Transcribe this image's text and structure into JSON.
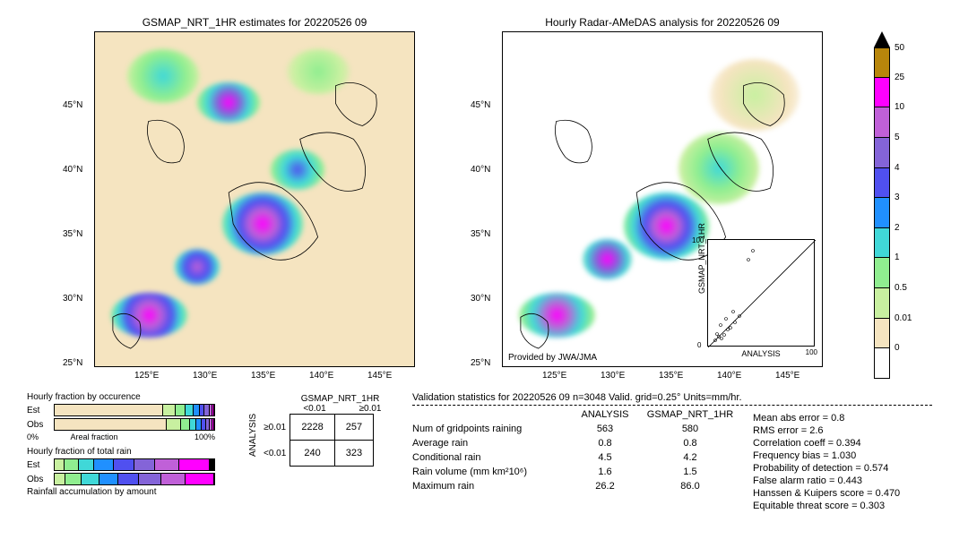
{
  "maps": {
    "left": {
      "title": "GSMAP_NRT_1HR estimates for 20220526 09",
      "x_ticks": [
        "125°E",
        "130°E",
        "135°E",
        "140°E",
        "145°E"
      ],
      "y_ticks": [
        "25°N",
        "30°N",
        "35°N",
        "40°N",
        "45°N"
      ],
      "bg_color": "#f5e4c0"
    },
    "right": {
      "title": "Hourly Radar-AMeDAS analysis for 20220526 09",
      "x_ticks": [
        "125°E",
        "130°E",
        "135°E",
        "140°E",
        "145°E"
      ],
      "y_ticks": [
        "25°N",
        "30°N",
        "35°N",
        "40°N",
        "45°N"
      ],
      "attribution": "Provided by JWA/JMA",
      "bg_color": "#ffffff"
    },
    "xlim": [
      120,
      150
    ],
    "ylim": [
      22,
      48
    ]
  },
  "scatter_inset": {
    "xlabel": "ANALYSIS",
    "ylabel": "GSMAP_NRT_1HR",
    "ticks": [
      "0",
      "20",
      "40",
      "60",
      "80",
      "100"
    ],
    "lim": [
      0,
      100
    ]
  },
  "colorbar": {
    "values": [
      "50",
      "25",
      "10",
      "5",
      "4",
      "3",
      "2",
      "1",
      "0.5",
      "0.01",
      "0"
    ],
    "colors": [
      "#b8860b",
      "#ff00ff",
      "#c060d8",
      "#8464d8",
      "#5050f0",
      "#2090ff",
      "#40d8d8",
      "#90ee90",
      "#c8f0a0",
      "#f5e4c0",
      "#ffffff"
    ],
    "top_arrow_color": "#000000"
  },
  "fraction_bars": {
    "occurrence_title": "Hourly fraction by occurence",
    "occurrence_xlabel": "Areal fraction",
    "occurrence_ticks": [
      "0%",
      "100%"
    ],
    "total_title": "Hourly fraction of total rain",
    "accum_title": "Rainfall accumulation by amount",
    "row_labels": [
      "Est",
      "Obs"
    ],
    "occurrence_est": [
      {
        "w": 0.68,
        "c": "#f5e4c0"
      },
      {
        "w": 0.08,
        "c": "#c8f0a0"
      },
      {
        "w": 0.06,
        "c": "#90ee90"
      },
      {
        "w": 0.05,
        "c": "#40d8d8"
      },
      {
        "w": 0.04,
        "c": "#2090ff"
      },
      {
        "w": 0.03,
        "c": "#5050f0"
      },
      {
        "w": 0.03,
        "c": "#8464d8"
      },
      {
        "w": 0.02,
        "c": "#c060d8"
      },
      {
        "w": 0.01,
        "c": "#ff00ff"
      }
    ],
    "occurrence_obs": [
      {
        "w": 0.7,
        "c": "#f5e4c0"
      },
      {
        "w": 0.09,
        "c": "#c8f0a0"
      },
      {
        "w": 0.06,
        "c": "#90ee90"
      },
      {
        "w": 0.04,
        "c": "#40d8d8"
      },
      {
        "w": 0.03,
        "c": "#2090ff"
      },
      {
        "w": 0.03,
        "c": "#5050f0"
      },
      {
        "w": 0.02,
        "c": "#8464d8"
      },
      {
        "w": 0.02,
        "c": "#c060d8"
      },
      {
        "w": 0.01,
        "c": "#ff00ff"
      }
    ],
    "total_est": [
      {
        "w": 0.06,
        "c": "#c8f0a0"
      },
      {
        "w": 0.09,
        "c": "#90ee90"
      },
      {
        "w": 0.1,
        "c": "#40d8d8"
      },
      {
        "w": 0.12,
        "c": "#2090ff"
      },
      {
        "w": 0.13,
        "c": "#5050f0"
      },
      {
        "w": 0.13,
        "c": "#8464d8"
      },
      {
        "w": 0.15,
        "c": "#c060d8"
      },
      {
        "w": 0.19,
        "c": "#ff00ff"
      },
      {
        "w": 0.03,
        "c": "#000000"
      }
    ],
    "total_obs": [
      {
        "w": 0.07,
        "c": "#c8f0a0"
      },
      {
        "w": 0.1,
        "c": "#90ee90"
      },
      {
        "w": 0.11,
        "c": "#40d8d8"
      },
      {
        "w": 0.12,
        "c": "#2090ff"
      },
      {
        "w": 0.13,
        "c": "#5050f0"
      },
      {
        "w": 0.14,
        "c": "#8464d8"
      },
      {
        "w": 0.15,
        "c": "#c060d8"
      },
      {
        "w": 0.18,
        "c": "#ff00ff"
      }
    ]
  },
  "contingency": {
    "col_header": "GSMAP_NRT_1HR",
    "row_header": "ANALYSIS",
    "col_labels": [
      "<0.01",
      "≥0.01"
    ],
    "row_labels": [
      "≥0.01",
      "<0.01"
    ],
    "cells": [
      [
        "2228",
        "257"
      ],
      [
        "240",
        "323"
      ]
    ]
  },
  "validation": {
    "title": "Validation statistics for 20220526 09  n=3048 Valid. grid=0.25°  Units=mm/hr.",
    "col1": "ANALYSIS",
    "col2": "GSMAP_NRT_1HR",
    "rows": [
      {
        "name": "Num of gridpoints raining",
        "v1": "563",
        "v2": "580"
      },
      {
        "name": "Average rain",
        "v1": "0.8",
        "v2": "0.8"
      },
      {
        "name": "Conditional rain",
        "v1": "4.5",
        "v2": "4.2"
      },
      {
        "name": "Rain volume (mm km²10⁶)",
        "v1": "1.6",
        "v2": "1.5"
      },
      {
        "name": "Maximum rain",
        "v1": "26.2",
        "v2": "86.0"
      }
    ],
    "metrics": [
      "Mean abs error  =     0.8",
      "RMS error  =     2.6",
      "Correlation coeff  =  0.394",
      "Frequency bias  =  1.030",
      "Probability of detection  =  0.574",
      "False alarm ratio  =  0.443",
      "Hanssen & Kuipers score  =  0.470",
      "Equitable threat score  =  0.303"
    ]
  }
}
